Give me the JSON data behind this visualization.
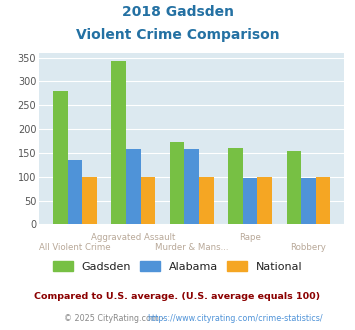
{
  "title_line1": "2018 Gadsden",
  "title_line2": "Violent Crime Comparison",
  "categories": [
    "All Violent Crime",
    "Aggravated Assault",
    "Murder & Mans...",
    "Rape",
    "Robbery"
  ],
  "series": {
    "Gadsden": [
      280,
      342,
      173,
      160,
      155
    ],
    "Alabama": [
      135,
      158,
      158,
      97,
      97
    ],
    "National": [
      100,
      100,
      100,
      100,
      100
    ]
  },
  "colors": {
    "Gadsden": "#77c044",
    "Alabama": "#4f93d8",
    "National": "#f5a623"
  },
  "ylim": [
    0,
    360
  ],
  "yticks": [
    0,
    50,
    100,
    150,
    200,
    250,
    300,
    350
  ],
  "bar_width": 0.25,
  "plot_bg": "#dce9f0",
  "grid_color": "#ffffff",
  "footnote1": "Compared to U.S. average. (U.S. average equals 100)",
  "footnote2_prefix": "© 2025 CityRating.com - ",
  "footnote2_link": "https://www.cityrating.com/crime-statistics/",
  "footnote1_color": "#8b0000",
  "footnote2_color": "#888888",
  "footnote2_link_color": "#4f93d8",
  "title_color": "#2471a3",
  "legend_labels": [
    "Gadsden",
    "Alabama",
    "National"
  ],
  "legend_text_color": "#222222",
  "xtick_color_top": "#b8a898",
  "xtick_color_bottom": "#b8a898",
  "top_labels": {
    "1": "Aggravated Assault",
    "3": "Rape"
  },
  "bottom_labels": {
    "0": "All Violent Crime",
    "2": "Murder & Mans...",
    "4": "Robbery"
  }
}
